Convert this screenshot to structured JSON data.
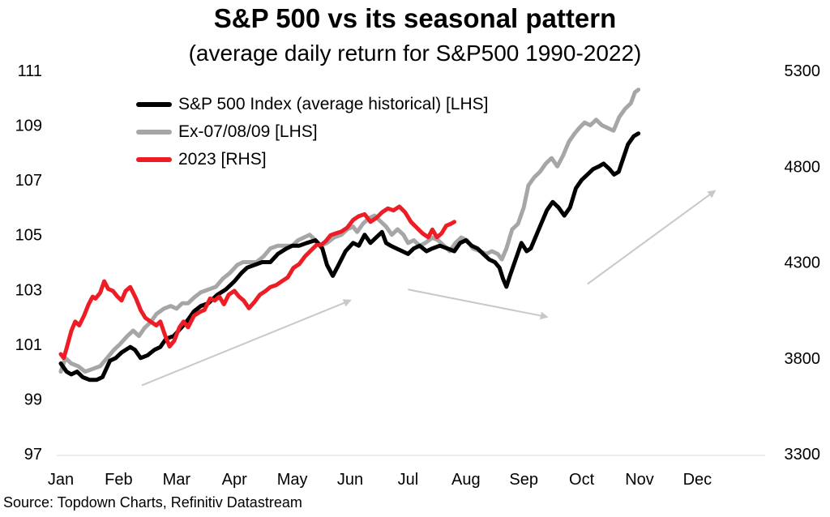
{
  "title": "S&P 500 vs its seasonal pattern",
  "subtitle": "(average daily return for S&P500 1990-2022)",
  "source": "Source: Topdown Charts, Refinitiv Datastream",
  "chart_data": {
    "type": "line",
    "x_unit": "month of year (Jan = 1.0)",
    "months": [
      "Jan",
      "Feb",
      "Mar",
      "Apr",
      "May",
      "Jun",
      "Jul",
      "Aug",
      "Sep",
      "Oct",
      "Nov",
      "Dec"
    ],
    "y_left": {
      "ylim": [
        97,
        111
      ],
      "ticks": [
        97,
        99,
        101,
        103,
        105,
        107,
        109,
        111
      ]
    },
    "y_right": {
      "ylim": [
        3300,
        5300
      ],
      "ticks": [
        3300,
        3800,
        4300,
        4800,
        5300
      ]
    },
    "grid": false,
    "legend_position": "top-left",
    "series": [
      {
        "name": "S&P 500 Index (average historical) [LHS]",
        "axis": "left",
        "color": "#000000",
        "points": [
          [
            1.0,
            100.3
          ],
          [
            1.1,
            100.0
          ],
          [
            1.18,
            99.9
          ],
          [
            1.28,
            100.0
          ],
          [
            1.38,
            99.8
          ],
          [
            1.5,
            99.7
          ],
          [
            1.62,
            99.7
          ],
          [
            1.72,
            99.8
          ],
          [
            1.85,
            100.4
          ],
          [
            1.95,
            100.5
          ],
          [
            2.05,
            100.7
          ],
          [
            2.2,
            100.9
          ],
          [
            2.28,
            100.8
          ],
          [
            2.38,
            100.5
          ],
          [
            2.5,
            100.6
          ],
          [
            2.62,
            100.8
          ],
          [
            2.72,
            100.9
          ],
          [
            2.82,
            101.2
          ],
          [
            2.95,
            101.3
          ],
          [
            3.08,
            101.6
          ],
          [
            3.2,
            101.9
          ],
          [
            3.3,
            102.2
          ],
          [
            3.42,
            102.4
          ],
          [
            3.55,
            102.5
          ],
          [
            3.7,
            102.8
          ],
          [
            3.85,
            103.0
          ],
          [
            4.0,
            103.3
          ],
          [
            4.12,
            103.6
          ],
          [
            4.22,
            103.8
          ],
          [
            4.35,
            103.9
          ],
          [
            4.48,
            104.0
          ],
          [
            4.62,
            104.0
          ],
          [
            4.75,
            104.3
          ],
          [
            4.9,
            104.5
          ],
          [
            5.0,
            104.6
          ],
          [
            5.12,
            104.6
          ],
          [
            5.25,
            104.7
          ],
          [
            5.4,
            104.8
          ],
          [
            5.52,
            104.5
          ],
          [
            5.6,
            103.9
          ],
          [
            5.7,
            103.5
          ],
          [
            5.8,
            103.9
          ],
          [
            5.92,
            104.4
          ],
          [
            6.05,
            104.7
          ],
          [
            6.15,
            104.6
          ],
          [
            6.25,
            105.0
          ],
          [
            6.35,
            104.7
          ],
          [
            6.45,
            104.9
          ],
          [
            6.55,
            105.1
          ],
          [
            6.62,
            104.7
          ],
          [
            6.7,
            104.6
          ],
          [
            6.8,
            104.5
          ],
          [
            6.9,
            104.4
          ],
          [
            7.0,
            104.3
          ],
          [
            7.1,
            104.5
          ],
          [
            7.2,
            104.6
          ],
          [
            7.32,
            104.4
          ],
          [
            7.42,
            104.5
          ],
          [
            7.55,
            104.6
          ],
          [
            7.68,
            104.5
          ],
          [
            7.8,
            104.4
          ],
          [
            7.9,
            104.7
          ],
          [
            8.0,
            104.8
          ],
          [
            8.1,
            104.6
          ],
          [
            8.2,
            104.5
          ],
          [
            8.3,
            104.3
          ],
          [
            8.4,
            104.1
          ],
          [
            8.5,
            104.0
          ],
          [
            8.58,
            103.8
          ],
          [
            8.64,
            103.4
          ],
          [
            8.7,
            103.1
          ],
          [
            8.76,
            103.5
          ],
          [
            8.86,
            104.1
          ],
          [
            8.96,
            104.7
          ],
          [
            9.05,
            104.4
          ],
          [
            9.12,
            104.5
          ],
          [
            9.2,
            104.9
          ],
          [
            9.3,
            105.4
          ],
          [
            9.4,
            105.9
          ],
          [
            9.5,
            106.2
          ],
          [
            9.6,
            106.0
          ],
          [
            9.7,
            105.7
          ],
          [
            9.8,
            106.0
          ],
          [
            9.9,
            106.7
          ],
          [
            10.0,
            107.0
          ],
          [
            10.1,
            107.2
          ],
          [
            10.2,
            107.4
          ],
          [
            10.3,
            107.5
          ],
          [
            10.38,
            107.6
          ],
          [
            10.48,
            107.4
          ],
          [
            10.56,
            107.2
          ],
          [
            10.64,
            107.3
          ],
          [
            10.72,
            107.8
          ],
          [
            10.8,
            108.3
          ],
          [
            10.9,
            108.6
          ],
          [
            10.98,
            108.7
          ]
        ]
      },
      {
        "name": "Ex-07/08/09 [LHS]",
        "axis": "left",
        "color": "#a6a6a6",
        "points": [
          [
            1.0,
            100.0
          ],
          [
            1.08,
            100.5
          ],
          [
            1.18,
            100.3
          ],
          [
            1.3,
            100.2
          ],
          [
            1.42,
            100.0
          ],
          [
            1.55,
            100.1
          ],
          [
            1.68,
            100.2
          ],
          [
            1.8,
            100.5
          ],
          [
            1.92,
            100.8
          ],
          [
            2.02,
            101.0
          ],
          [
            2.15,
            101.3
          ],
          [
            2.25,
            101.5
          ],
          [
            2.35,
            101.3
          ],
          [
            2.45,
            101.6
          ],
          [
            2.55,
            101.8
          ],
          [
            2.65,
            102.1
          ],
          [
            2.78,
            102.3
          ],
          [
            2.9,
            102.4
          ],
          [
            3.0,
            102.3
          ],
          [
            3.1,
            102.5
          ],
          [
            3.2,
            102.5
          ],
          [
            3.3,
            102.7
          ],
          [
            3.42,
            102.9
          ],
          [
            3.55,
            103.0
          ],
          [
            3.68,
            103.1
          ],
          [
            3.8,
            103.4
          ],
          [
            3.92,
            103.6
          ],
          [
            4.05,
            103.9
          ],
          [
            4.15,
            104.0
          ],
          [
            4.25,
            104.0
          ],
          [
            4.38,
            104.0
          ],
          [
            4.5,
            104.2
          ],
          [
            4.62,
            104.5
          ],
          [
            4.75,
            104.6
          ],
          [
            4.88,
            104.6
          ],
          [
            5.0,
            104.6
          ],
          [
            5.1,
            104.8
          ],
          [
            5.2,
            104.9
          ],
          [
            5.3,
            105.0
          ],
          [
            5.4,
            104.8
          ],
          [
            5.5,
            104.6
          ],
          [
            5.6,
            104.7
          ],
          [
            5.72,
            104.9
          ],
          [
            5.85,
            105.0
          ],
          [
            5.95,
            105.2
          ],
          [
            6.05,
            105.3
          ],
          [
            6.12,
            105.1
          ],
          [
            6.22,
            105.4
          ],
          [
            6.32,
            105.6
          ],
          [
            6.42,
            105.7
          ],
          [
            6.52,
            105.5
          ],
          [
            6.62,
            105.3
          ],
          [
            6.72,
            105.0
          ],
          [
            6.82,
            105.2
          ],
          [
            6.92,
            105.0
          ],
          [
            7.0,
            104.7
          ],
          [
            7.1,
            104.8
          ],
          [
            7.2,
            104.6
          ],
          [
            7.3,
            104.7
          ],
          [
            7.42,
            104.9
          ],
          [
            7.52,
            104.8
          ],
          [
            7.62,
            104.6
          ],
          [
            7.72,
            104.4
          ],
          [
            7.82,
            104.7
          ],
          [
            7.92,
            104.9
          ],
          [
            8.02,
            104.8
          ],
          [
            8.12,
            104.5
          ],
          [
            8.25,
            104.4
          ],
          [
            8.35,
            104.3
          ],
          [
            8.45,
            104.4
          ],
          [
            8.55,
            104.3
          ],
          [
            8.62,
            104.1
          ],
          [
            8.7,
            104.5
          ],
          [
            8.8,
            105.2
          ],
          [
            8.9,
            105.4
          ],
          [
            9.0,
            106.0
          ],
          [
            9.08,
            106.8
          ],
          [
            9.18,
            107.1
          ],
          [
            9.28,
            107.3
          ],
          [
            9.38,
            107.6
          ],
          [
            9.48,
            107.8
          ],
          [
            9.58,
            107.5
          ],
          [
            9.68,
            107.9
          ],
          [
            9.78,
            108.4
          ],
          [
            9.88,
            108.7
          ],
          [
            9.96,
            108.9
          ],
          [
            10.05,
            109.1
          ],
          [
            10.15,
            109.0
          ],
          [
            10.25,
            109.2
          ],
          [
            10.35,
            109.0
          ],
          [
            10.45,
            108.9
          ],
          [
            10.55,
            108.8
          ],
          [
            10.65,
            109.3
          ],
          [
            10.75,
            109.6
          ],
          [
            10.85,
            109.8
          ],
          [
            10.92,
            110.2
          ],
          [
            10.98,
            110.3
          ]
        ]
      },
      {
        "name": "2023 [RHS]",
        "axis": "right",
        "color": "#ee1c25",
        "points": [
          [
            1.0,
            3820
          ],
          [
            1.05,
            3800
          ],
          [
            1.1,
            3850
          ],
          [
            1.18,
            3940
          ],
          [
            1.25,
            3990
          ],
          [
            1.32,
            3970
          ],
          [
            1.4,
            4020
          ],
          [
            1.48,
            4080
          ],
          [
            1.55,
            4120
          ],
          [
            1.6,
            4110
          ],
          [
            1.68,
            4140
          ],
          [
            1.75,
            4200
          ],
          [
            1.82,
            4160
          ],
          [
            1.9,
            4150
          ],
          [
            1.98,
            4120
          ],
          [
            2.05,
            4100
          ],
          [
            2.12,
            4150
          ],
          [
            2.2,
            4170
          ],
          [
            2.3,
            4110
          ],
          [
            2.38,
            4050
          ],
          [
            2.46,
            4010
          ],
          [
            2.55,
            3990
          ],
          [
            2.65,
            3970
          ],
          [
            2.72,
            3990
          ],
          [
            2.8,
            3920
          ],
          [
            2.88,
            3860
          ],
          [
            2.96,
            3890
          ],
          [
            3.05,
            3960
          ],
          [
            3.12,
            3990
          ],
          [
            3.2,
            3960
          ],
          [
            3.3,
            4020
          ],
          [
            3.4,
            4040
          ],
          [
            3.48,
            4050
          ],
          [
            3.58,
            4110
          ],
          [
            3.66,
            4100
          ],
          [
            3.74,
            4120
          ],
          [
            3.82,
            4080
          ],
          [
            3.9,
            4130
          ],
          [
            4.0,
            4150
          ],
          [
            4.08,
            4120
          ],
          [
            4.16,
            4100
          ],
          [
            4.25,
            4060
          ],
          [
            4.34,
            4090
          ],
          [
            4.44,
            4130
          ],
          [
            4.54,
            4150
          ],
          [
            4.62,
            4170
          ],
          [
            4.72,
            4180
          ],
          [
            4.82,
            4200
          ],
          [
            4.92,
            4220
          ],
          [
            5.02,
            4270
          ],
          [
            5.12,
            4290
          ],
          [
            5.22,
            4330
          ],
          [
            5.32,
            4360
          ],
          [
            5.42,
            4390
          ],
          [
            5.5,
            4390
          ],
          [
            5.58,
            4410
          ],
          [
            5.66,
            4440
          ],
          [
            5.75,
            4450
          ],
          [
            5.85,
            4460
          ],
          [
            5.95,
            4480
          ],
          [
            6.05,
            4520
          ],
          [
            6.15,
            4540
          ],
          [
            6.25,
            4550
          ],
          [
            6.35,
            4510
          ],
          [
            6.45,
            4530
          ],
          [
            6.55,
            4560
          ],
          [
            6.65,
            4580
          ],
          [
            6.75,
            4570
          ],
          [
            6.85,
            4590
          ],
          [
            6.95,
            4560
          ],
          [
            7.05,
            4510
          ],
          [
            7.15,
            4480
          ],
          [
            7.25,
            4450
          ],
          [
            7.35,
            4430
          ],
          [
            7.42,
            4470
          ],
          [
            7.5,
            4430
          ],
          [
            7.58,
            4450
          ],
          [
            7.66,
            4490
          ],
          [
            7.74,
            4500
          ],
          [
            7.8,
            4510
          ]
        ]
      }
    ],
    "annotations": [
      {
        "type": "arrow",
        "from": [
          2.4,
          99.5
        ],
        "to": [
          6.0,
          102.6
        ],
        "axis": "left"
      },
      {
        "type": "arrow",
        "from": [
          7.0,
          103.0
        ],
        "to": [
          9.4,
          102.0
        ],
        "axis": "left"
      },
      {
        "type": "arrow",
        "from": [
          10.1,
          103.2
        ],
        "to": [
          12.3,
          106.6
        ],
        "axis": "left"
      }
    ]
  }
}
